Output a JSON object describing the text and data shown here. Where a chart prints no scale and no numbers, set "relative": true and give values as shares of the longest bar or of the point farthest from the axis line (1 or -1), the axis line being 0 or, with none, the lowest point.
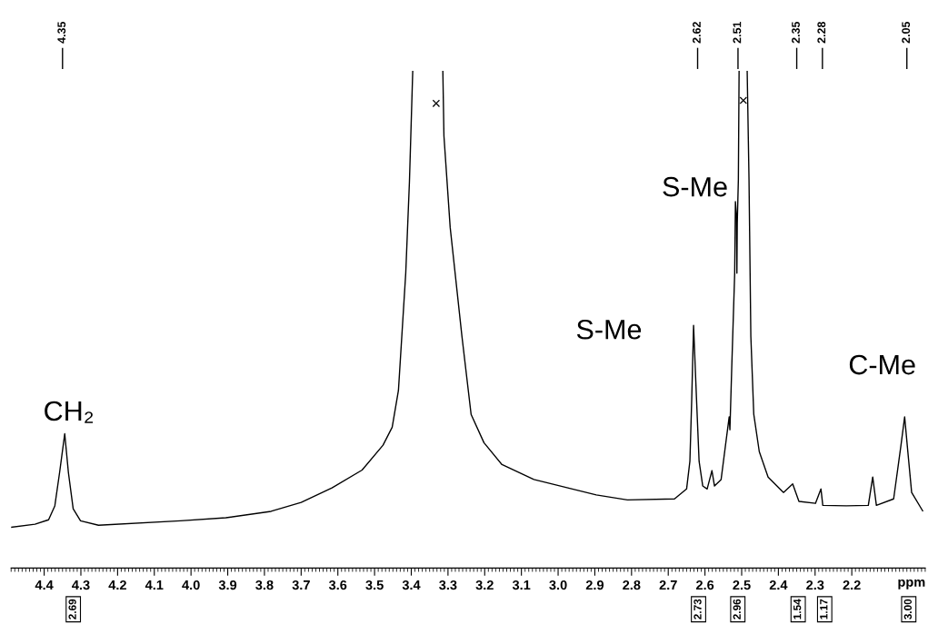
{
  "chart_data": {
    "type": "line",
    "relative": true,
    "xlabel": "ppm",
    "xlim": [
      4.49,
      2.0
    ],
    "xticks": [
      4.4,
      4.3,
      4.2,
      4.1,
      {
        "value": 4.0,
        "label": "4.0"
      },
      3.9,
      3.8,
      3.7,
      3.6,
      3.5,
      3.4,
      3.3,
      3.2,
      3.1,
      {
        "value": 3.0,
        "label": "3.0"
      },
      2.9,
      2.8,
      2.7,
      2.6,
      2.5,
      2.4,
      2.3,
      2.2
    ],
    "series": [
      {
        "color": "#000000",
        "x": [
          4.49,
          4.425,
          4.388,
          4.371,
          4.358,
          4.344,
          4.334,
          4.321,
          4.301,
          4.252,
          4.029,
          3.905,
          3.782,
          3.7,
          3.616,
          3.534,
          3.477,
          3.452,
          3.435,
          3.415,
          3.405,
          3.396,
          3.36,
          3.314,
          3.311,
          3.294,
          3.262,
          3.237,
          3.202,
          3.153,
          3.066,
          2.896,
          2.811,
          2.683,
          2.65,
          2.641,
          2.636,
          2.631,
          2.623,
          2.616,
          2.606,
          2.594,
          2.581,
          2.574,
          2.556,
          2.544,
          2.534,
          2.532,
          2.527,
          2.519,
          2.517,
          2.514,
          2.513,
          2.512,
          2.509,
          2.507,
          2.496,
          2.485,
          2.48,
          2.475,
          2.467,
          2.452,
          2.428,
          2.386,
          2.361,
          2.344,
          2.299,
          2.284,
          2.279,
          2.215,
          2.155,
          2.143,
          2.133,
          2.086,
          2.066,
          2.056,
          2.049,
          2.037,
          2.007
        ],
        "values": [
          0.082,
          0.088,
          0.097,
          0.125,
          0.192,
          0.27,
          0.192,
          0.119,
          0.095,
          0.086,
          0.095,
          0.101,
          0.114,
          0.132,
          0.161,
          0.197,
          0.247,
          0.283,
          0.357,
          0.594,
          0.777,
          1.0,
          null,
          1.0,
          0.869,
          0.685,
          0.466,
          0.309,
          0.252,
          0.208,
          0.178,
          0.147,
          0.137,
          0.139,
          0.159,
          0.215,
          0.34,
          0.488,
          0.34,
          0.215,
          0.165,
          0.159,
          0.196,
          0.165,
          0.178,
          0.247,
          0.304,
          0.278,
          0.404,
          0.593,
          0.737,
          0.705,
          0.593,
          0.693,
          0.781,
          1.0,
          null,
          1.0,
          0.781,
          0.466,
          0.309,
          0.234,
          0.183,
          0.152,
          0.169,
          0.134,
          0.13,
          0.159,
          0.126,
          0.125,
          0.126,
          0.183,
          0.126,
          0.139,
          0.247,
          0.304,
          0.247,
          0.152,
          0.115
        ]
      }
    ],
    "ref_lines": [
      {
        "axis": "x",
        "value": 4.35,
        "label": "4.35"
      },
      {
        "axis": "x",
        "value": 2.62,
        "label": "2.62"
      },
      {
        "axis": "x",
        "value": 2.51,
        "label": "2.51"
      },
      {
        "axis": "x",
        "value": 2.35,
        "label": "2.35"
      },
      {
        "axis": "x",
        "value": 2.28,
        "label": "2.28"
      },
      {
        "axis": "x",
        "value": 2.05,
        "label": "2.05"
      }
    ],
    "annotations": [
      "CH₂",
      "S-Me",
      "S-Me",
      "C-Me",
      "×",
      "×",
      "2.69",
      "2.73",
      "2.96",
      "1.54",
      "1.17",
      "3.00"
    ]
  }
}
